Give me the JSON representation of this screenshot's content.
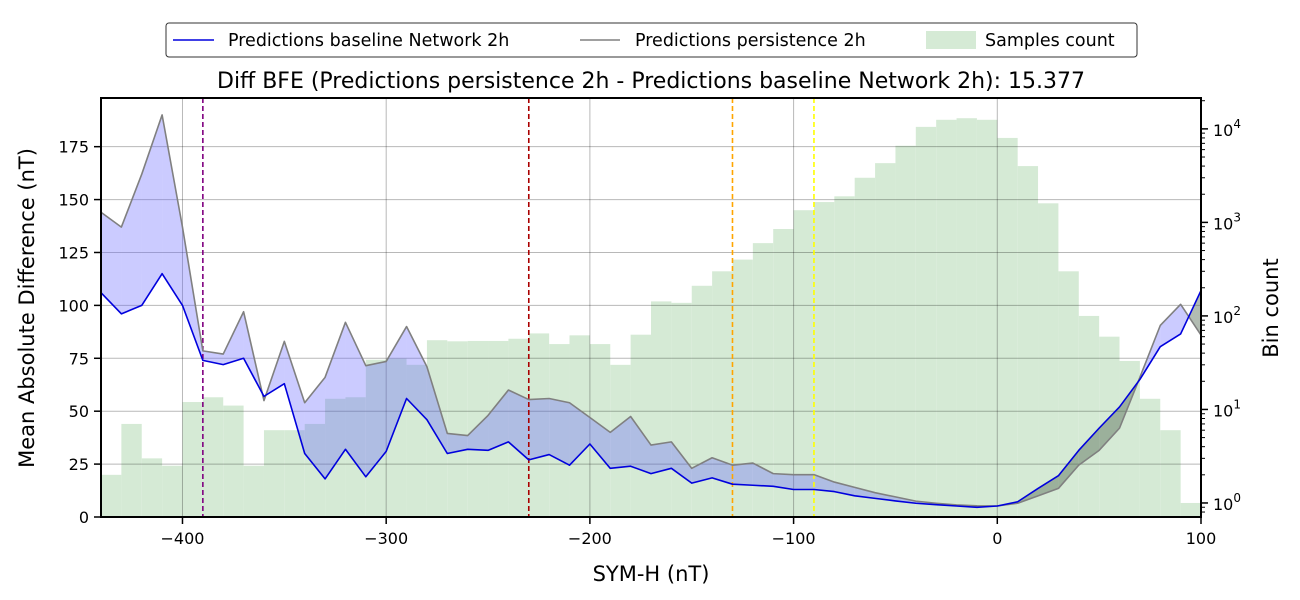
{
  "chart_data": {
    "type": "line",
    "title": "Diff BFE (Predictions persistence 2h - Predictions baseline Network 2h): 15.377",
    "xlabel": "SYM-H (nT)",
    "ylabel": "Mean Absolute Difference (nT)",
    "ylabel_right": "Bin count",
    "xlim": [
      -440,
      100
    ],
    "ylim": [
      0,
      198
    ],
    "y2lim_log10": [
      -0.15,
      4.33
    ],
    "x_ticks": [
      -400,
      -300,
      -200,
      -100,
      0,
      100
    ],
    "x_tick_labels": [
      "−400",
      "−300",
      "−200",
      "−100",
      "0",
      "100"
    ],
    "y_ticks": [
      0,
      25,
      50,
      75,
      100,
      125,
      150,
      175
    ],
    "y_tick_labels": [
      "0",
      "25",
      "50",
      "75",
      "100",
      "125",
      "150",
      "175"
    ],
    "y2_ticks": [
      1,
      10,
      100,
      1000,
      10000
    ],
    "y2_tick_labels": [
      {
        "base": "10",
        "exp": "0"
      },
      {
        "base": "10",
        "exp": "1"
      },
      {
        "base": "10",
        "exp": "2"
      },
      {
        "base": "10",
        "exp": "3"
      },
      {
        "base": "10",
        "exp": "4"
      }
    ],
    "grid": true,
    "legend_position": "top-center",
    "series": [
      {
        "name": "Predictions baseline Network 2h",
        "color": "#0000dd",
        "x": [
          -440,
          -430,
          -420,
          -410,
          -400,
          -390,
          -380,
          -370,
          -360,
          -350,
          -340,
          -330,
          -320,
          -310,
          -300,
          -290,
          -280,
          -270,
          -260,
          -250,
          -240,
          -230,
          -220,
          -210,
          -200,
          -190,
          -180,
          -170,
          -160,
          -150,
          -140,
          -130,
          -120,
          -110,
          -100,
          -90,
          -80,
          -70,
          -60,
          -50,
          -40,
          -30,
          -20,
          -10,
          0,
          10,
          20,
          30,
          40,
          50,
          60,
          70,
          80,
          90,
          100
        ],
        "values": [
          106,
          96,
          100,
          115,
          100,
          74,
          72,
          75,
          57,
          63,
          30,
          18,
          32,
          19,
          31,
          56,
          46,
          30,
          32,
          31.5,
          35.5,
          27,
          29.5,
          24.5,
          34.5,
          23,
          24,
          20.5,
          23,
          16,
          18.5,
          15.5,
          15,
          14.5,
          13,
          13,
          12,
          10,
          8.8,
          7.6,
          6.5,
          5.8,
          5.2,
          4.6,
          5.2,
          7.2,
          13.5,
          19.5,
          31.5,
          42,
          52,
          65,
          80.5,
          86.5,
          107
        ]
      },
      {
        "name": "Predictions persistence 2h",
        "color": "#808080",
        "x": [
          -440,
          -430,
          -420,
          -410,
          -400,
          -390,
          -380,
          -370,
          -360,
          -350,
          -340,
          -330,
          -320,
          -310,
          -300,
          -290,
          -280,
          -270,
          -260,
          -250,
          -240,
          -230,
          -220,
          -210,
          -200,
          -190,
          -180,
          -170,
          -160,
          -150,
          -140,
          -130,
          -120,
          -110,
          -100,
          -90,
          -80,
          -70,
          -60,
          -50,
          -40,
          -30,
          -20,
          -10,
          0,
          10,
          20,
          30,
          40,
          50,
          60,
          70,
          80,
          90,
          100
        ],
        "values": [
          144,
          137,
          162,
          190,
          137,
          78.5,
          77,
          97,
          55,
          83,
          54,
          66,
          92,
          71.5,
          73.5,
          90,
          71,
          39.5,
          38.5,
          48,
          60,
          55.5,
          56,
          54,
          47,
          40,
          47.5,
          34,
          35.5,
          23,
          28,
          24.5,
          25.5,
          20.5,
          20,
          20,
          16.5,
          14,
          11.5,
          9.5,
          7.5,
          6.5,
          5.7,
          5.3,
          5.2,
          6.5,
          10,
          13.5,
          24.5,
          31.5,
          42,
          66,
          90.5,
          100.5,
          86
        ]
      }
    ],
    "histogram": {
      "name": "Samples count",
      "color": "#d5ead5",
      "bin_width": 10,
      "bin_start": [
        -450,
        -440,
        -430,
        -420,
        -410,
        -400,
        -390,
        -380,
        -370,
        -360,
        -350,
        -340,
        -330,
        -320,
        -310,
        -300,
        -290,
        -280,
        -270,
        -260,
        -250,
        -240,
        -230,
        -220,
        -210,
        -200,
        -190,
        -180,
        -170,
        -160,
        -150,
        -140,
        -130,
        -120,
        -110,
        -100,
        -90,
        -80,
        -70,
        -60,
        -50,
        -40,
        -30,
        -20,
        -10,
        0,
        10,
        20,
        30,
        40,
        50,
        60,
        70,
        80,
        90
      ],
      "counts": [
        2,
        2,
        7,
        3,
        2.5,
        12,
        13.5,
        11,
        2.5,
        6,
        6,
        7,
        13,
        13.5,
        34,
        35,
        30,
        55,
        53.5,
        54,
        54,
        57,
        65,
        50,
        62,
        50,
        30,
        63,
        143,
        138,
        210,
        300,
        400,
        600,
        850,
        1350,
        1650,
        1900,
        3000,
        4300,
        6600,
        10500,
        12500,
        13000,
        12500,
        8000,
        4000,
        1600,
        300,
        100,
        60,
        33,
        13,
        6,
        1
      ]
    }
  }
}
